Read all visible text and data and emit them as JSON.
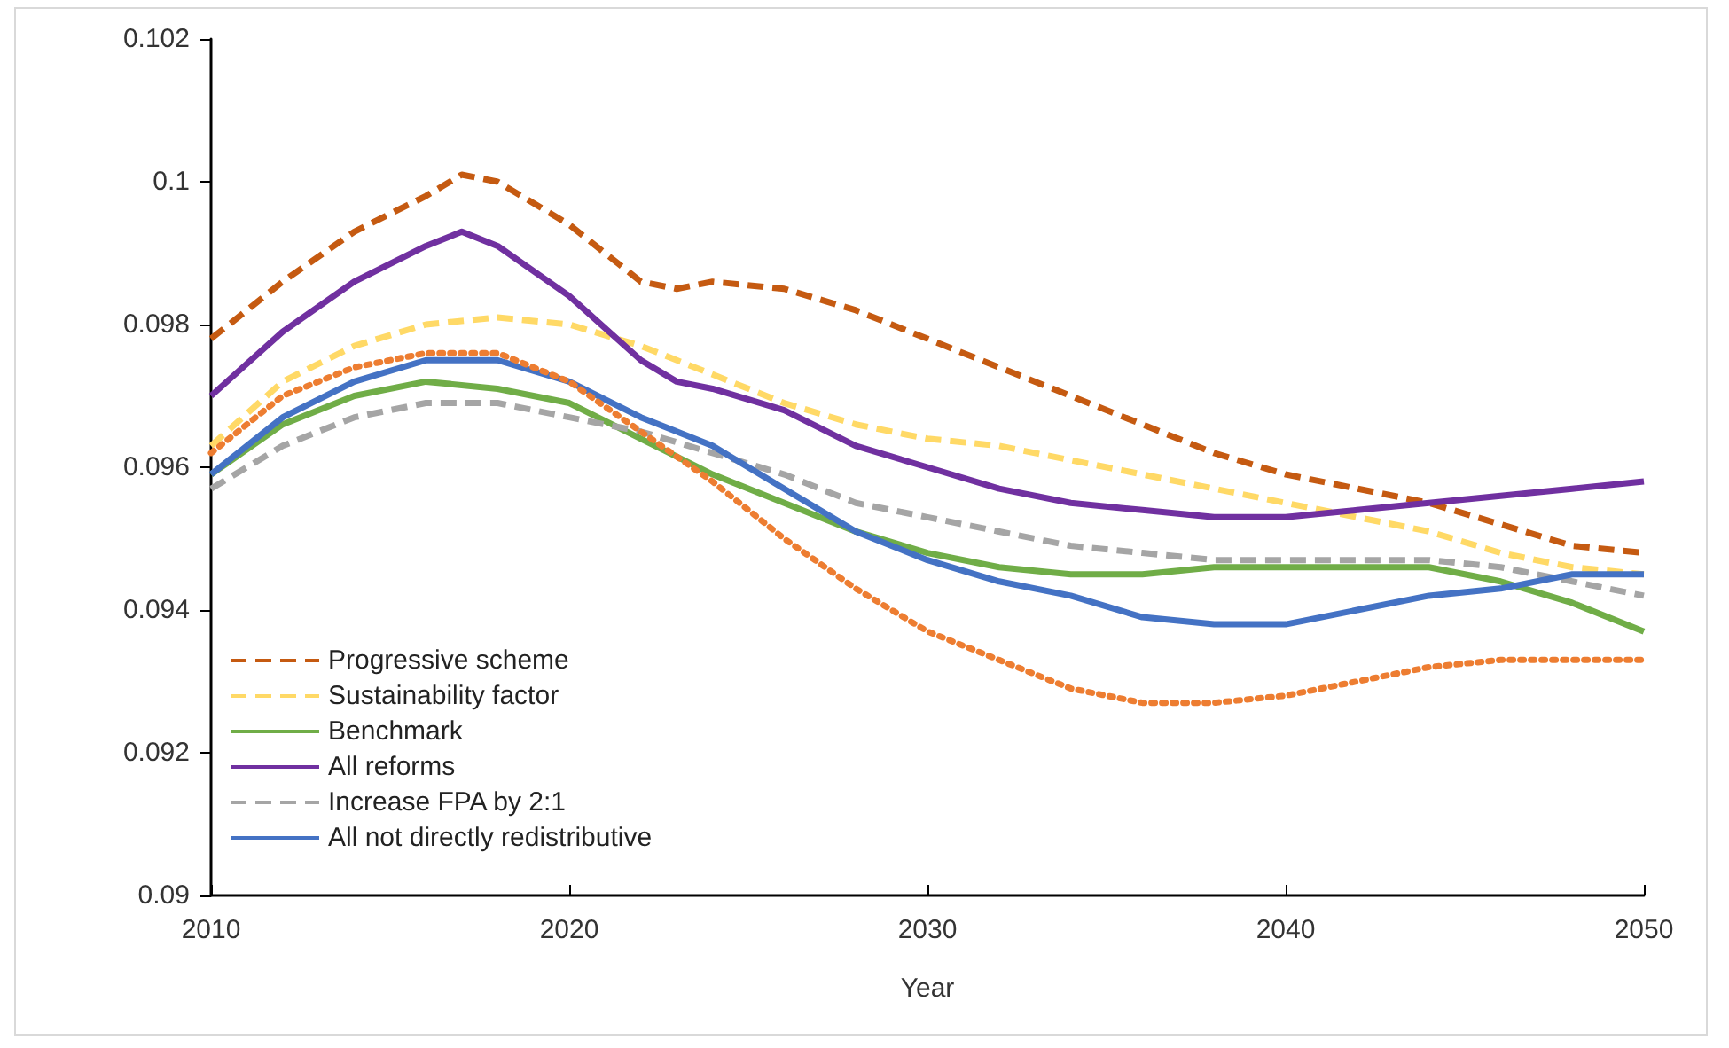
{
  "chart_data": {
    "type": "line",
    "xlabel": "Year",
    "x": [
      2010,
      2012,
      2014,
      2016,
      2018,
      2020,
      2022,
      2024,
      2026,
      2028,
      2030,
      2032,
      2034,
      2036,
      2038,
      2040,
      2042,
      2044,
      2046,
      2048,
      2050
    ],
    "xlim": [
      2010,
      2050
    ],
    "xticks": [
      2010,
      2020,
      2030,
      2040,
      2050
    ],
    "ylim": [
      0.09,
      0.102
    ],
    "yticks": [
      0.09,
      0.092,
      0.094,
      0.096,
      0.098,
      0.1,
      0.102
    ],
    "grid": false,
    "legend": "bottom left",
    "marker": "none",
    "series": [
      {
        "name": "Progressive scheme",
        "color": "#c55a11",
        "line_style": "dashed",
        "x": [
          2010,
          2012,
          2014,
          2016,
          2017,
          2018,
          2020,
          2022,
          2023,
          2024,
          2026,
          2028,
          2030,
          2032,
          2034,
          2036,
          2038,
          2040,
          2042,
          2044,
          2046,
          2048,
          2050
        ],
        "values": [
          0.0978,
          0.0986,
          0.0993,
          0.0998,
          0.1001,
          0.1,
          0.0994,
          0.0986,
          0.0985,
          0.0986,
          0.0985,
          0.0982,
          0.0978,
          0.0974,
          0.097,
          0.0966,
          0.0962,
          0.0959,
          0.0957,
          0.0955,
          0.0952,
          0.0949,
          0.0948
        ]
      },
      {
        "name": "Sustainability factor",
        "color": "#ffd966",
        "line_style": "dashed",
        "values": [
          0.0963,
          0.0972,
          0.0977,
          0.098,
          0.0981,
          0.098,
          0.0977,
          0.0973,
          0.0969,
          0.0966,
          0.0964,
          0.0963,
          0.0961,
          0.0959,
          0.0957,
          0.0955,
          0.0953,
          0.0951,
          0.0948,
          0.0946,
          0.0945
        ]
      },
      {
        "name": "Benchmark",
        "color": "#70ad47",
        "line_style": "solid",
        "values": [
          0.0959,
          0.0966,
          0.097,
          0.0972,
          0.0971,
          0.0969,
          0.0964,
          0.0959,
          0.0955,
          0.0951,
          0.0948,
          0.0946,
          0.0945,
          0.0945,
          0.0946,
          0.0946,
          0.0946,
          0.0946,
          0.0944,
          0.0941,
          0.0937
        ]
      },
      {
        "name": "All reforms",
        "color": "#7030a0",
        "line_style": "solid",
        "x": [
          2010,
          2012,
          2014,
          2016,
          2017,
          2018,
          2020,
          2022,
          2023,
          2024,
          2026,
          2028,
          2030,
          2032,
          2034,
          2036,
          2038,
          2040,
          2042,
          2044,
          2046,
          2048,
          2050
        ],
        "values": [
          0.097,
          0.0979,
          0.0986,
          0.0991,
          0.0993,
          0.0991,
          0.0984,
          0.0975,
          0.0972,
          0.0971,
          0.0968,
          0.0963,
          0.096,
          0.0957,
          0.0955,
          0.0954,
          0.0953,
          0.0953,
          0.0954,
          0.0955,
          0.0956,
          0.0957,
          0.0958
        ]
      },
      {
        "name": "Increase FPA by 2:1",
        "color": "#a5a5a5",
        "line_style": "dashed",
        "values": [
          0.0957,
          0.0963,
          0.0967,
          0.0969,
          0.0969,
          0.0967,
          0.0965,
          0.0962,
          0.0959,
          0.0955,
          0.0953,
          0.0951,
          0.0949,
          0.0948,
          0.0947,
          0.0947,
          0.0947,
          0.0947,
          0.0946,
          0.0944,
          0.0942
        ]
      },
      {
        "name": "All not directly redistributive",
        "color": "#4472c4",
        "line_style": "solid",
        "values": [
          0.0959,
          0.0967,
          0.0972,
          0.0975,
          0.0975,
          0.0972,
          0.0967,
          0.0963,
          0.0957,
          0.0951,
          0.0947,
          0.0944,
          0.0942,
          0.0939,
          0.0938,
          0.0938,
          0.094,
          0.0942,
          0.0943,
          0.0945,
          0.0945
        ]
      },
      {
        "color": "#ed7d31",
        "line_style": "dotted",
        "values": [
          0.0962,
          0.097,
          0.0974,
          0.0976,
          0.0976,
          0.0972,
          0.0965,
          0.0958,
          0.095,
          0.0943,
          0.0937,
          0.0933,
          0.0929,
          0.0927,
          0.0927,
          0.0928,
          0.093,
          0.0932,
          0.0933,
          0.0933,
          0.0933
        ]
      }
    ]
  }
}
